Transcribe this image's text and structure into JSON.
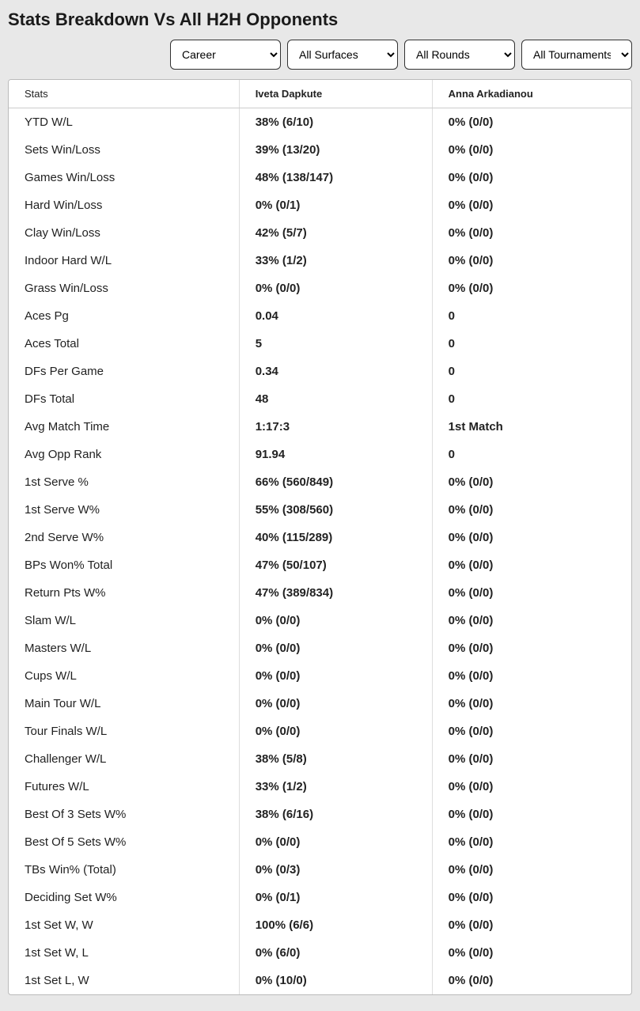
{
  "title": "Stats Breakdown Vs All H2H Opponents",
  "filters": {
    "career": {
      "selected": "Career"
    },
    "surface": {
      "selected": "All Surfaces"
    },
    "rounds": {
      "selected": "All Rounds"
    },
    "tournaments": {
      "selected": "All Tournaments"
    }
  },
  "columns": {
    "stats": "Stats",
    "p1": "Iveta Dapkute",
    "p2": "Anna Arkadianou"
  },
  "rows": [
    {
      "stat": "YTD W/L",
      "p1": "38% (6/10)",
      "p2": "0% (0/0)"
    },
    {
      "stat": "Sets Win/Loss",
      "p1": "39% (13/20)",
      "p2": "0% (0/0)"
    },
    {
      "stat": "Games Win/Loss",
      "p1": "48% (138/147)",
      "p2": "0% (0/0)"
    },
    {
      "stat": "Hard Win/Loss",
      "p1": "0% (0/1)",
      "p2": "0% (0/0)"
    },
    {
      "stat": "Clay Win/Loss",
      "p1": "42% (5/7)",
      "p2": "0% (0/0)"
    },
    {
      "stat": "Indoor Hard W/L",
      "p1": "33% (1/2)",
      "p2": "0% (0/0)"
    },
    {
      "stat": "Grass Win/Loss",
      "p1": "0% (0/0)",
      "p2": "0% (0/0)"
    },
    {
      "stat": "Aces Pg",
      "p1": "0.04",
      "p2": "0"
    },
    {
      "stat": "Aces Total",
      "p1": "5",
      "p2": "0"
    },
    {
      "stat": "DFs Per Game",
      "p1": "0.34",
      "p2": "0"
    },
    {
      "stat": "DFs Total",
      "p1": "48",
      "p2": "0"
    },
    {
      "stat": "Avg Match Time",
      "p1": "1:17:3",
      "p2": "1st Match"
    },
    {
      "stat": "Avg Opp Rank",
      "p1": "91.94",
      "p2": "0"
    },
    {
      "stat": "1st Serve %",
      "p1": "66% (560/849)",
      "p2": "0% (0/0)"
    },
    {
      "stat": "1st Serve W%",
      "p1": "55% (308/560)",
      "p2": "0% (0/0)"
    },
    {
      "stat": "2nd Serve W%",
      "p1": "40% (115/289)",
      "p2": "0% (0/0)"
    },
    {
      "stat": "BPs Won% Total",
      "p1": "47% (50/107)",
      "p2": "0% (0/0)"
    },
    {
      "stat": "Return Pts W%",
      "p1": "47% (389/834)",
      "p2": "0% (0/0)"
    },
    {
      "stat": "Slam W/L",
      "p1": "0% (0/0)",
      "p2": "0% (0/0)"
    },
    {
      "stat": "Masters W/L",
      "p1": "0% (0/0)",
      "p2": "0% (0/0)"
    },
    {
      "stat": "Cups W/L",
      "p1": "0% (0/0)",
      "p2": "0% (0/0)"
    },
    {
      "stat": "Main Tour W/L",
      "p1": "0% (0/0)",
      "p2": "0% (0/0)"
    },
    {
      "stat": "Tour Finals W/L",
      "p1": "0% (0/0)",
      "p2": "0% (0/0)"
    },
    {
      "stat": "Challenger W/L",
      "p1": "38% (5/8)",
      "p2": "0% (0/0)"
    },
    {
      "stat": "Futures W/L",
      "p1": "33% (1/2)",
      "p2": "0% (0/0)"
    },
    {
      "stat": "Best Of 3 Sets W%",
      "p1": "38% (6/16)",
      "p2": "0% (0/0)"
    },
    {
      "stat": "Best Of 5 Sets W%",
      "p1": "0% (0/0)",
      "p2": "0% (0/0)"
    },
    {
      "stat": "TBs Win% (Total)",
      "p1": "0% (0/3)",
      "p2": "0% (0/0)"
    },
    {
      "stat": "Deciding Set W%",
      "p1": "0% (0/1)",
      "p2": "0% (0/0)"
    },
    {
      "stat": "1st Set W, W",
      "p1": "100% (6/6)",
      "p2": "0% (0/0)"
    },
    {
      "stat": "1st Set W, L",
      "p1": "0% (6/0)",
      "p2": "0% (0/0)"
    },
    {
      "stat": "1st Set L, W",
      "p1": "0% (10/0)",
      "p2": "0% (0/0)"
    }
  ]
}
